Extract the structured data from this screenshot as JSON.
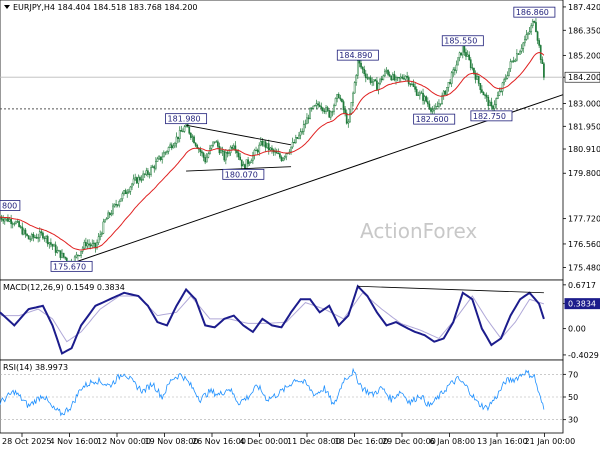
{
  "chart_data": {
    "type": "candlestick",
    "symbol_header": "EURJPY,H4  184.404 184.518 183.768 184.200",
    "watermark": "ActionForex",
    "x_tick_labels": [
      "28 Oct 2025",
      "4 Nov 16:00",
      "12 Nov 00:00",
      "19 Nov 08:00",
      "26 Nov 16:00",
      "4 Dec 00:00",
      "11 Dec 08:00",
      "18 Dec 16:00",
      "29 Dec 00:00",
      "6 Jan 08:00",
      "13 Jan 16:00",
      "21 Jan 00:00"
    ],
    "y_tick_labels": [
      "187.420",
      "186.350",
      "185.200",
      "184.200",
      "183.000",
      "181.950",
      "180.910",
      "179.800",
      "177.720",
      "176.560",
      "175.480"
    ],
    "y_range": [
      175.0,
      187.6
    ],
    "current_price": "184.200",
    "reference_level": "182.750",
    "price_path": [
      [
        0,
        177.8
      ],
      [
        3,
        177.6
      ],
      [
        6,
        176.8
      ],
      [
        9,
        177.0
      ],
      [
        12,
        176.2
      ],
      [
        15,
        175.67
      ],
      [
        18,
        176.6
      ],
      [
        20,
        176.4
      ],
      [
        22,
        177.6
      ],
      [
        25,
        178.6
      ],
      [
        28,
        179.4
      ],
      [
        31,
        179.8
      ],
      [
        34,
        180.6
      ],
      [
        37,
        181.4
      ],
      [
        39,
        181.98
      ],
      [
        41,
        181.2
      ],
      [
        43,
        180.4
      ],
      [
        45,
        181.3
      ],
      [
        47,
        180.5
      ],
      [
        49,
        181.2
      ],
      [
        51,
        180.07
      ],
      [
        53,
        180.6
      ],
      [
        55,
        181.2
      ],
      [
        57,
        180.8
      ],
      [
        59,
        180.5
      ],
      [
        61,
        181.0
      ],
      [
        63,
        181.6
      ],
      [
        65,
        182.6
      ],
      [
        67,
        183.0
      ],
      [
        69,
        182.5
      ],
      [
        71,
        183.4
      ],
      [
        73,
        182.0
      ],
      [
        75,
        184.89
      ],
      [
        77,
        184.2
      ],
      [
        79,
        183.8
      ],
      [
        81,
        184.5
      ],
      [
        83,
        184.0
      ],
      [
        85,
        184.3
      ],
      [
        87,
        183.6
      ],
      [
        89,
        183.2
      ],
      [
        91,
        182.6
      ],
      [
        93,
        183.4
      ],
      [
        95,
        184.4
      ],
      [
        97,
        185.55
      ],
      [
        99,
        184.6
      ],
      [
        101,
        183.6
      ],
      [
        103,
        182.75
      ],
      [
        105,
        183.6
      ],
      [
        107,
        184.8
      ],
      [
        109,
        185.5
      ],
      [
        111,
        186.3
      ],
      [
        112,
        186.86
      ],
      [
        113,
        185.6
      ],
      [
        114,
        184.2
      ]
    ],
    "trend_line": {
      "from": [
        15,
        175.67
      ],
      "to": [
        118,
        183.4
      ]
    },
    "wedge_lines": [
      {
        "from": [
          39,
          182.0
        ],
        "to": [
          61,
          181.1
        ]
      },
      {
        "from": [
          39,
          179.9
        ],
        "to": [
          61,
          180.1
        ]
      }
    ],
    "annotations": [
      {
        "text": "800",
        "x": -3,
        "y": 178.0
      },
      {
        "text": "175.670",
        "x": 15,
        "y": 175.67
      },
      {
        "text": "181.980",
        "x": 39,
        "y": 181.98
      },
      {
        "text": "180.070",
        "x": 51,
        "y": 180.07
      },
      {
        "text": "184.890",
        "x": 75,
        "y": 184.89
      },
      {
        "text": "185.550",
        "x": 97,
        "y": 185.55
      },
      {
        "text": "186.860",
        "x": 112,
        "y": 186.86
      },
      {
        "text": "182.600",
        "x": 91,
        "y": 182.6
      },
      {
        "text": "182.750",
        "x": 103,
        "y": 182.75
      }
    ],
    "macd": {
      "header": "MACD(12,26,9) 0.1549 0.3834",
      "y_tick_labels": [
        "0.6717",
        "0.3834",
        "0.00",
        "-0.4029"
      ],
      "y_range": [
        -0.45,
        0.7
      ],
      "main_path": [
        [
          0,
          0.25
        ],
        [
          3,
          0.05
        ],
        [
          6,
          0.3
        ],
        [
          9,
          0.35
        ],
        [
          11,
          0.05
        ],
        [
          13,
          -0.38
        ],
        [
          15,
          -0.3
        ],
        [
          17,
          0.05
        ],
        [
          20,
          0.35
        ],
        [
          23,
          0.45
        ],
        [
          26,
          0.55
        ],
        [
          29,
          0.5
        ],
        [
          31,
          0.35
        ],
        [
          33,
          0.1
        ],
        [
          35,
          0.05
        ],
        [
          37,
          0.35
        ],
        [
          39,
          0.6
        ],
        [
          41,
          0.45
        ],
        [
          43,
          0.05
        ],
        [
          45,
          0.02
        ],
        [
          47,
          0.15
        ],
        [
          49,
          0.2
        ],
        [
          51,
          0.05
        ],
        [
          53,
          -0.05
        ],
        [
          55,
          0.15
        ],
        [
          57,
          0.05
        ],
        [
          59,
          0.02
        ],
        [
          61,
          0.25
        ],
        [
          63,
          0.45
        ],
        [
          65,
          0.45
        ],
        [
          67,
          0.25
        ],
        [
          69,
          0.35
        ],
        [
          71,
          0.05
        ],
        [
          73,
          0.2
        ],
        [
          75,
          0.65
        ],
        [
          77,
          0.5
        ],
        [
          79,
          0.25
        ],
        [
          81,
          0.05
        ],
        [
          83,
          0.1
        ],
        [
          85,
          0.02
        ],
        [
          87,
          -0.05
        ],
        [
          89,
          -0.1
        ],
        [
          91,
          -0.2
        ],
        [
          93,
          -0.15
        ],
        [
          95,
          0.1
        ],
        [
          97,
          0.55
        ],
        [
          99,
          0.45
        ],
        [
          101,
          0.0
        ],
        [
          103,
          -0.25
        ],
        [
          105,
          -0.15
        ],
        [
          107,
          0.2
        ],
        [
          109,
          0.45
        ],
        [
          111,
          0.55
        ],
        [
          113,
          0.38
        ],
        [
          114,
          0.15
        ]
      ],
      "signal_path": [
        [
          0,
          0.2
        ],
        [
          4,
          0.2
        ],
        [
          8,
          0.3
        ],
        [
          11,
          0.15
        ],
        [
          14,
          -0.2
        ],
        [
          17,
          -0.05
        ],
        [
          21,
          0.3
        ],
        [
          25,
          0.5
        ],
        [
          29,
          0.5
        ],
        [
          33,
          0.2
        ],
        [
          37,
          0.25
        ],
        [
          40,
          0.5
        ],
        [
          44,
          0.15
        ],
        [
          48,
          0.15
        ],
        [
          52,
          0.08
        ],
        [
          56,
          0.08
        ],
        [
          60,
          0.1
        ],
        [
          64,
          0.4
        ],
        [
          68,
          0.3
        ],
        [
          72,
          0.15
        ],
        [
          76,
          0.55
        ],
        [
          80,
          0.3
        ],
        [
          84,
          0.08
        ],
        [
          88,
          -0.02
        ],
        [
          92,
          -0.15
        ],
        [
          96,
          0.2
        ],
        [
          99,
          0.5
        ],
        [
          102,
          0.15
        ],
        [
          105,
          -0.15
        ],
        [
          108,
          0.1
        ],
        [
          111,
          0.45
        ],
        [
          114,
          0.38
        ]
      ],
      "trend_line": {
        "from": [
          75,
          0.65
        ],
        "to": [
          114,
          0.55
        ]
      }
    },
    "rsi": {
      "header": "RSI(14) 38.9973",
      "y_tick_labels": [
        "70",
        "50",
        "30"
      ],
      "y_range": [
        20,
        80
      ],
      "path": [
        [
          0,
          45
        ],
        [
          3,
          55
        ],
        [
          6,
          42
        ],
        [
          9,
          52
        ],
        [
          11,
          40
        ],
        [
          13,
          35
        ],
        [
          15,
          42
        ],
        [
          17,
          58
        ],
        [
          20,
          65
        ],
        [
          23,
          60
        ],
        [
          26,
          72
        ],
        [
          28,
          62
        ],
        [
          30,
          55
        ],
        [
          32,
          62
        ],
        [
          34,
          50
        ],
        [
          36,
          66
        ],
        [
          38,
          70
        ],
        [
          40,
          60
        ],
        [
          42,
          48
        ],
        [
          44,
          55
        ],
        [
          46,
          52
        ],
        [
          48,
          58
        ],
        [
          50,
          45
        ],
        [
          52,
          50
        ],
        [
          54,
          60
        ],
        [
          56,
          48
        ],
        [
          58,
          52
        ],
        [
          60,
          58
        ],
        [
          62,
          66
        ],
        [
          64,
          62
        ],
        [
          66,
          52
        ],
        [
          68,
          58
        ],
        [
          70,
          42
        ],
        [
          72,
          65
        ],
        [
          74,
          72
        ],
        [
          76,
          58
        ],
        [
          78,
          52
        ],
        [
          80,
          58
        ],
        [
          82,
          48
        ],
        [
          84,
          55
        ],
        [
          86,
          45
        ],
        [
          88,
          52
        ],
        [
          90,
          42
        ],
        [
          92,
          50
        ],
        [
          94,
          60
        ],
        [
          96,
          66
        ],
        [
          98,
          58
        ],
        [
          100,
          45
        ],
        [
          102,
          40
        ],
        [
          104,
          50
        ],
        [
          106,
          64
        ],
        [
          108,
          66
        ],
        [
          110,
          72
        ],
        [
          112,
          68
        ],
        [
          113,
          52
        ],
        [
          114,
          39
        ]
      ]
    }
  }
}
